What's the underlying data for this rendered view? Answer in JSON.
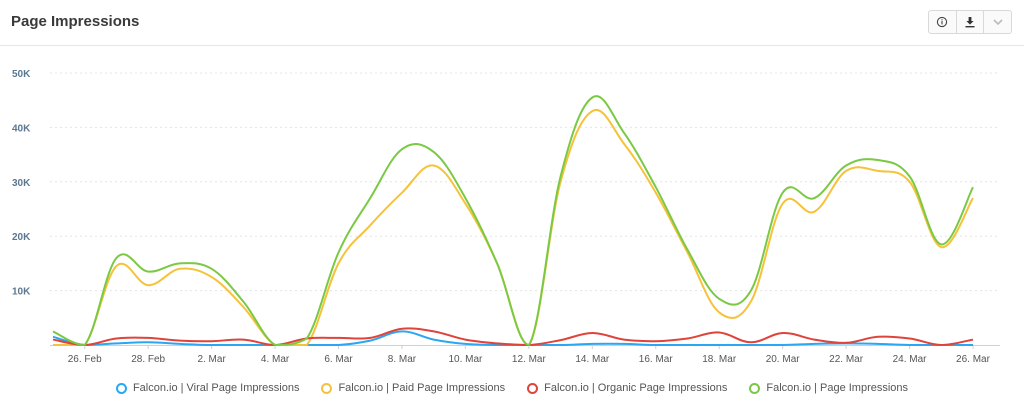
{
  "header": {
    "title": "Page Impressions"
  },
  "toolbar": {
    "info_icon": "info-icon",
    "download_icon": "download-icon",
    "dropdown_icon": "chevron-down-icon"
  },
  "chart_data": {
    "type": "line",
    "ylim": [
      0,
      50000
    ],
    "y_ticks": [
      10000,
      20000,
      30000,
      40000,
      50000
    ],
    "y_tick_labels": [
      "10K",
      "20K",
      "30K",
      "40K",
      "50K"
    ],
    "x_tick_labels": [
      "26. Feb",
      "28. Feb",
      "2. Mar",
      "4. Mar",
      "6. Mar",
      "8. Mar",
      "10. Mar",
      "12. Mar",
      "14. Mar",
      "16. Mar",
      "18. Mar",
      "20. Mar",
      "22. Mar",
      "24. Mar",
      "26. Mar"
    ],
    "x": [
      "25. Feb",
      "26. Feb",
      "27. Feb",
      "28. Feb",
      "1. Mar",
      "2. Mar",
      "3. Mar",
      "4. Mar",
      "5. Mar",
      "6. Mar",
      "7. Mar",
      "8. Mar",
      "9. Mar",
      "10. Mar",
      "11. Mar",
      "12. Mar",
      "13. Mar",
      "14. Mar",
      "15. Mar",
      "16. Mar",
      "17. Mar",
      "18. Mar",
      "19. Mar",
      "20. Mar",
      "21. Mar",
      "22. Mar",
      "23. Mar",
      "24. Mar",
      "25. Mar",
      "26. Mar"
    ],
    "grid": true,
    "legend_position": "bottom",
    "series": [
      {
        "name": "Falcon.io | Viral Page Impressions",
        "color": "#2aa6f2",
        "values": [
          1500,
          0,
          300,
          500,
          200,
          0,
          0,
          0,
          0,
          0,
          800,
          2500,
          1000,
          200,
          0,
          0,
          0,
          200,
          200,
          0,
          0,
          0,
          0,
          0,
          200,
          300,
          200,
          0,
          0,
          0
        ]
      },
      {
        "name": "Falcon.io | Paid Page Impressions",
        "color": "#f6c23a",
        "values": [
          0,
          0,
          14500,
          11000,
          14000,
          12500,
          7000,
          0,
          0,
          15000,
          22000,
          28000,
          33000,
          26000,
          15000,
          0,
          30000,
          43000,
          37000,
          28000,
          17000,
          6000,
          8000,
          26000,
          24500,
          32000,
          32000,
          30000,
          18000,
          27000
        ]
      },
      {
        "name": "Falcon.io | Organic Page Impressions",
        "color": "#e0433a",
        "values": [
          1000,
          0,
          1200,
          1300,
          800,
          700,
          1000,
          0,
          1200,
          1300,
          1300,
          3000,
          2500,
          1000,
          300,
          0,
          900,
          2200,
          1000,
          700,
          1200,
          2300,
          500,
          2200,
          1000,
          400,
          1500,
          1200,
          0,
          1000
        ]
      },
      {
        "name": "Falcon.io | Page Impressions",
        "color": "#7ac943",
        "values": [
          2500,
          0,
          16000,
          13500,
          15000,
          14000,
          8000,
          0,
          1200,
          17000,
          27000,
          36000,
          35500,
          27000,
          15000,
          0,
          31000,
          45500,
          39000,
          29000,
          17500,
          8500,
          10000,
          28000,
          27000,
          33000,
          34000,
          31000,
          18500,
          29000
        ]
      }
    ]
  }
}
